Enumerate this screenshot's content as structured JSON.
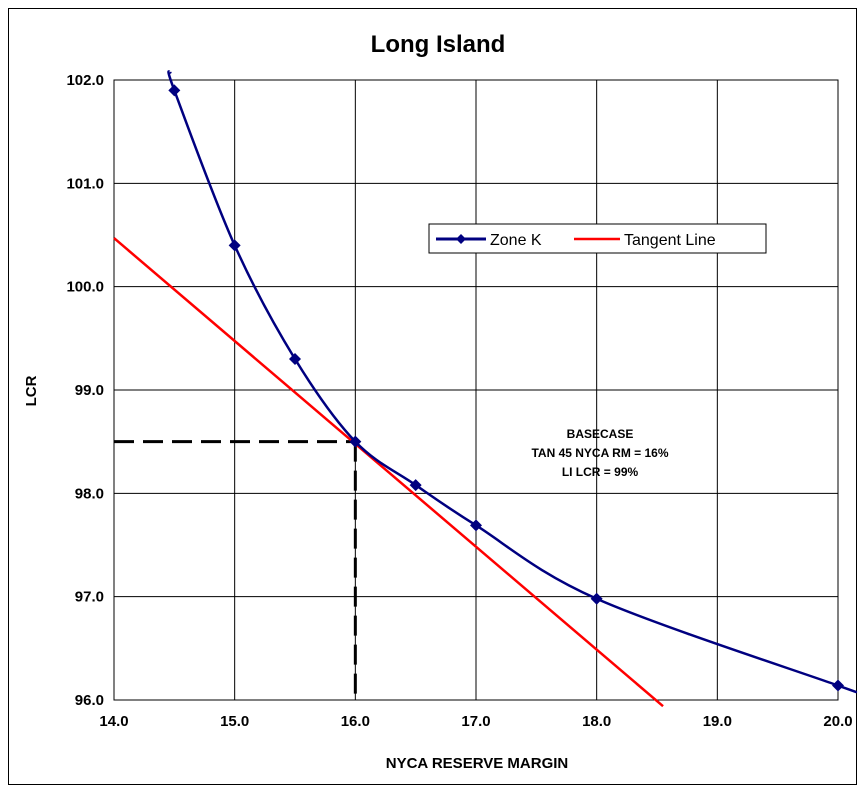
{
  "chart_data": {
    "type": "line",
    "title": "Long Island",
    "xlabel": "NYCA RESERVE MARGIN",
    "ylabel": "LCR",
    "xlim": [
      14.0,
      20.0
    ],
    "ylim": [
      96.0,
      102.0
    ],
    "x_ticks": [
      "14.0",
      "15.0",
      "16.0",
      "17.0",
      "18.0",
      "19.0",
      "20.0"
    ],
    "y_ticks": [
      "96.0",
      "97.0",
      "98.0",
      "99.0",
      "100.0",
      "101.0",
      "102.0"
    ],
    "grid": true,
    "legend_position": "upper-right inside plot",
    "series": [
      {
        "name": "Zone K",
        "color": "#000080",
        "marker": "diamond",
        "x": [
          14.5,
          15.0,
          15.5,
          16.0,
          16.5,
          17.0,
          18.0,
          20.0
        ],
        "y": [
          101.9,
          100.4,
          99.3,
          98.5,
          98.08,
          97.69,
          96.98,
          96.14
        ]
      },
      {
        "name": "Tangent Line",
        "color": "#ff0000",
        "x": [
          14.0,
          18.55
        ],
        "y": [
          100.47,
          95.94
        ]
      }
    ],
    "reference_lines": {
      "x": 16.0,
      "y": 98.5,
      "style": "dashed",
      "color": "#000000"
    },
    "annotation": [
      "BASECASE",
      "TAN 45 NYCA RM = 16%",
      "LI LCR = 99%"
    ]
  }
}
